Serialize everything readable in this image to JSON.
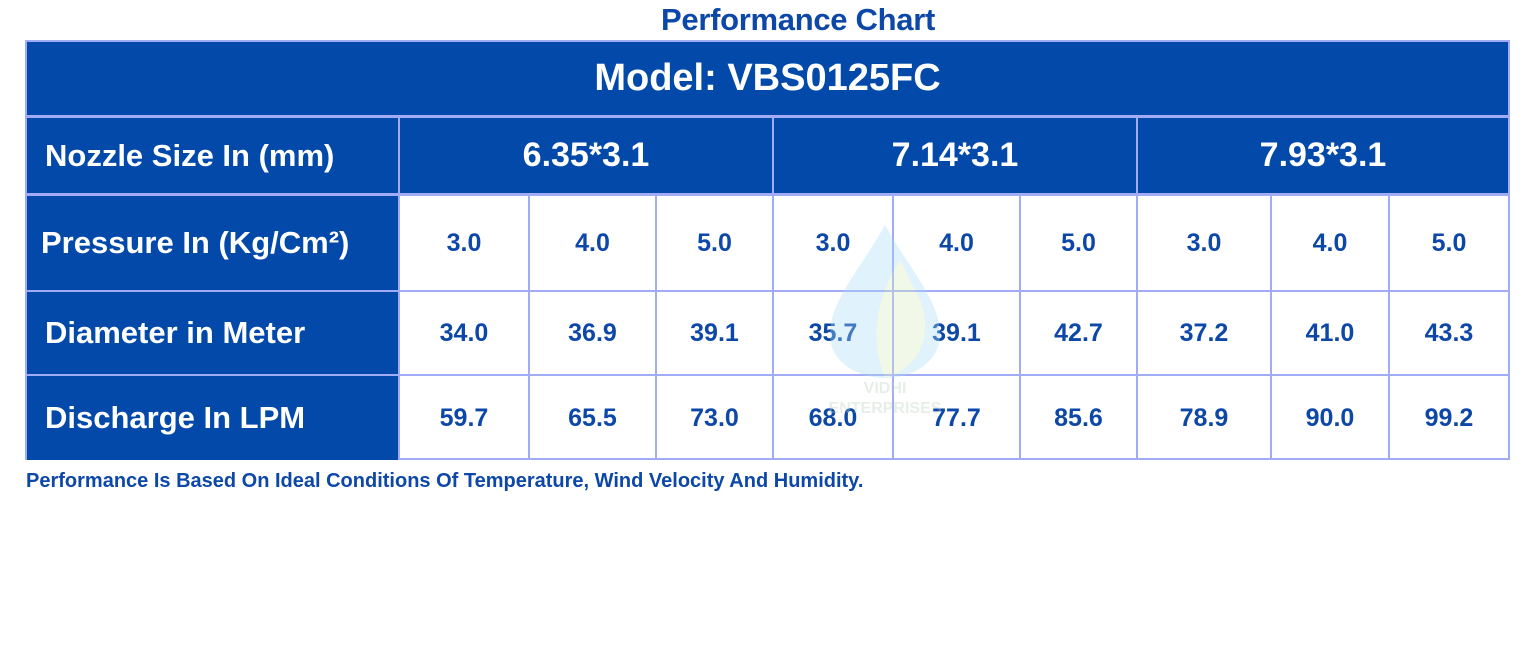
{
  "title": "Performance Chart",
  "model": "Model: VBS0125FC",
  "watermark": {
    "line1": "VIDHI",
    "line2": "ENTERPRISES"
  },
  "row_labels": {
    "nozzle": "Nozzle Size In (mm)",
    "pressure": "Pressure In (Kg/Cm²)",
    "diameter": "Diameter in Meter",
    "discharge": "Discharge In LPM"
  },
  "nozzles": [
    "6.35*3.1",
    "7.14*3.1",
    "7.93*3.1"
  ],
  "pressure": [
    "3.0",
    "4.0",
    "5.0",
    "3.0",
    "4.0",
    "5.0",
    "3.0",
    "4.0",
    "5.0"
  ],
  "diameter": [
    "34.0",
    "36.9",
    "39.1",
    "35.7",
    "39.1",
    "42.7",
    "37.2",
    "41.0",
    "43.3"
  ],
  "discharge": [
    "59.7",
    "65.5",
    "73.0",
    "68.0",
    "77.7",
    "85.6",
    "78.9",
    "90.0",
    "99.2"
  ],
  "footnote": "Performance Is Based On Ideal Conditions Of Temperature, Wind Velocity And Humidity.",
  "colors": {
    "header_bg": "#0249aa",
    "border": "#a2acf6",
    "text": "#0d47a8"
  }
}
